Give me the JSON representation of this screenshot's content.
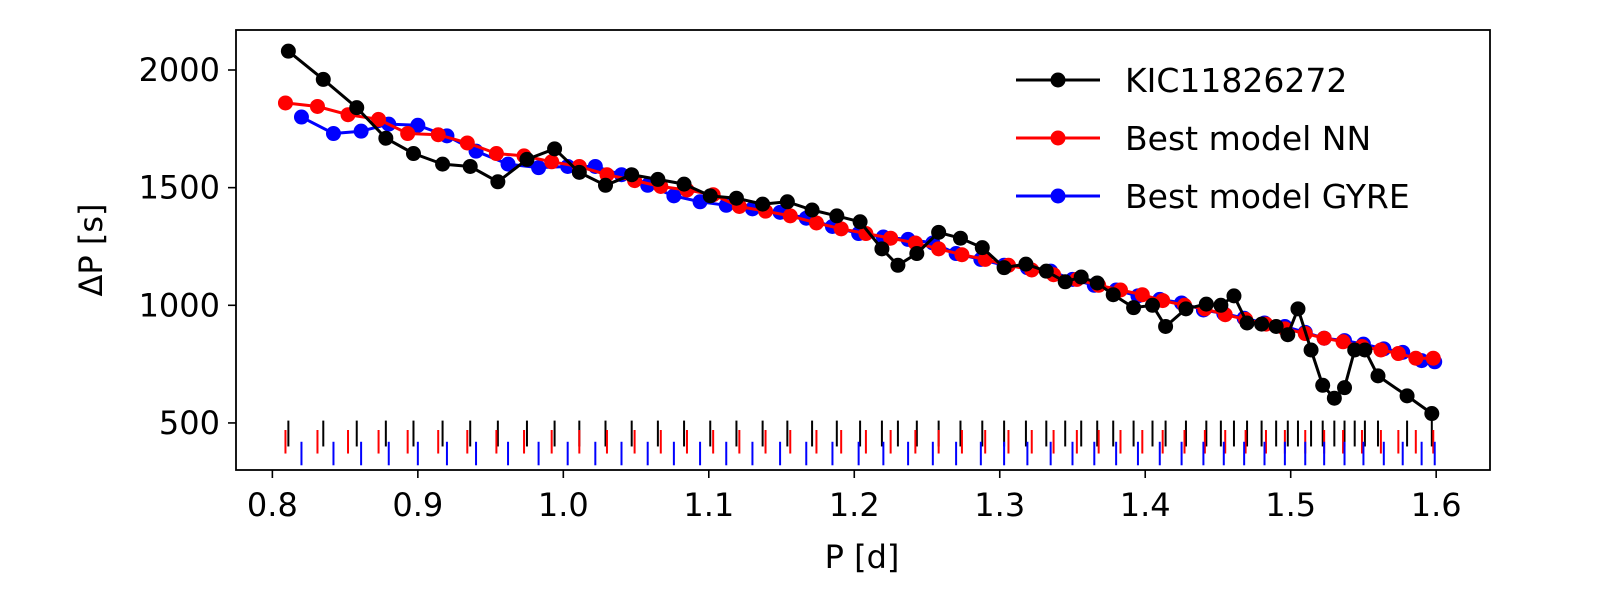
{
  "chart_data": {
    "type": "line",
    "title": "",
    "xlabel": "P [d]",
    "ylabel": "ΔP [s]",
    "xlim": [
      0.775,
      1.637
    ],
    "ylim": [
      300,
      2170
    ],
    "xticks": [
      0.8,
      0.9,
      1.0,
      1.1,
      1.2,
      1.3,
      1.4,
      1.5,
      1.6
    ],
    "xtick_labels": [
      "0.8",
      "0.9",
      "1.0",
      "1.1",
      "1.2",
      "1.3",
      "1.4",
      "1.5",
      "1.6"
    ],
    "yticks": [
      500,
      1000,
      1500,
      2000
    ],
    "ytick_labels": [
      "500",
      "1000",
      "1500",
      "2000"
    ],
    "legend_position": "top-right",
    "series": [
      {
        "name": "KIC11826272",
        "color": "#000000",
        "x": [
          0.811,
          0.835,
          0.858,
          0.878,
          0.897,
          0.917,
          0.936,
          0.955,
          0.975,
          0.994,
          1.011,
          1.029,
          1.047,
          1.065,
          1.083,
          1.101,
          1.119,
          1.137,
          1.154,
          1.171,
          1.188,
          1.204,
          1.219,
          1.23,
          1.243,
          1.258,
          1.273,
          1.288,
          1.303,
          1.318,
          1.332,
          1.345,
          1.356,
          1.367,
          1.378,
          1.392,
          1.405,
          1.414,
          1.428,
          1.442,
          1.452,
          1.461,
          1.47,
          1.48,
          1.49,
          1.498,
          1.505,
          1.514,
          1.522,
          1.53,
          1.537,
          1.544,
          1.551,
          1.56,
          1.58,
          1.597
        ],
        "y": [
          2080,
          1960,
          1840,
          1710,
          1645,
          1600,
          1590,
          1525,
          1620,
          1665,
          1565,
          1510,
          1555,
          1535,
          1515,
          1465,
          1455,
          1430,
          1440,
          1405,
          1380,
          1355,
          1240,
          1170,
          1220,
          1310,
          1285,
          1245,
          1160,
          1175,
          1145,
          1100,
          1120,
          1095,
          1045,
          990,
          1000,
          910,
          985,
          1005,
          1000,
          1040,
          925,
          920,
          910,
          875,
          985,
          810,
          660,
          605,
          650,
          810,
          810,
          700,
          615,
          540
        ]
      },
      {
        "name": "Best model NN",
        "color": "#ff0000",
        "x": [
          0.809,
          0.831,
          0.852,
          0.873,
          0.893,
          0.914,
          0.934,
          0.954,
          0.973,
          0.992,
          1.011,
          1.03,
          1.049,
          1.067,
          1.085,
          1.103,
          1.121,
          1.139,
          1.156,
          1.174,
          1.191,
          1.208,
          1.225,
          1.242,
          1.258,
          1.274,
          1.29,
          1.306,
          1.322,
          1.337,
          1.353,
          1.368,
          1.383,
          1.398,
          1.412,
          1.427,
          1.441,
          1.455,
          1.469,
          1.483,
          1.496,
          1.51,
          1.523,
          1.536,
          1.549,
          1.562,
          1.574,
          1.586,
          1.598
        ],
        "y": [
          1860,
          1845,
          1810,
          1790,
          1730,
          1725,
          1690,
          1645,
          1635,
          1610,
          1590,
          1555,
          1530,
          1505,
          1490,
          1470,
          1420,
          1400,
          1380,
          1350,
          1325,
          1305,
          1285,
          1265,
          1240,
          1215,
          1195,
          1170,
          1150,
          1130,
          1110,
          1085,
          1065,
          1045,
          1020,
          1000,
          985,
          960,
          940,
          920,
          900,
          880,
          860,
          845,
          825,
          810,
          795,
          775,
          775
        ]
      },
      {
        "name": "Best model GYRE",
        "color": "#0000ff",
        "x": [
          0.82,
          0.842,
          0.861,
          0.88,
          0.9,
          0.92,
          0.94,
          0.962,
          0.983,
          1.003,
          1.022,
          1.04,
          1.058,
          1.076,
          1.094,
          1.112,
          1.13,
          1.149,
          1.167,
          1.185,
          1.203,
          1.22,
          1.237,
          1.254,
          1.27,
          1.287,
          1.303,
          1.319,
          1.335,
          1.35,
          1.365,
          1.38,
          1.395,
          1.41,
          1.425,
          1.44,
          1.454,
          1.468,
          1.482,
          1.496,
          1.51,
          1.523,
          1.537,
          1.55,
          1.564,
          1.577,
          1.59,
          1.599
        ],
        "y": [
          1800,
          1730,
          1740,
          1770,
          1765,
          1720,
          1655,
          1600,
          1585,
          1590,
          1590,
          1555,
          1510,
          1465,
          1440,
          1425,
          1410,
          1395,
          1370,
          1335,
          1305,
          1290,
          1280,
          1265,
          1220,
          1195,
          1170,
          1160,
          1145,
          1110,
          1085,
          1065,
          1040,
          1025,
          1010,
          980,
          965,
          945,
          925,
          910,
          885,
          860,
          850,
          835,
          815,
          800,
          765,
          760
        ]
      }
    ],
    "tick_rows": [
      {
        "series": "KIC11826272",
        "y_top": 510,
        "y_bottom": 400
      },
      {
        "series": "Best model NN",
        "y_top": 470,
        "y_bottom": 370
      },
      {
        "series": "Best model GYRE",
        "y_top": 420,
        "y_bottom": 320
      }
    ]
  }
}
